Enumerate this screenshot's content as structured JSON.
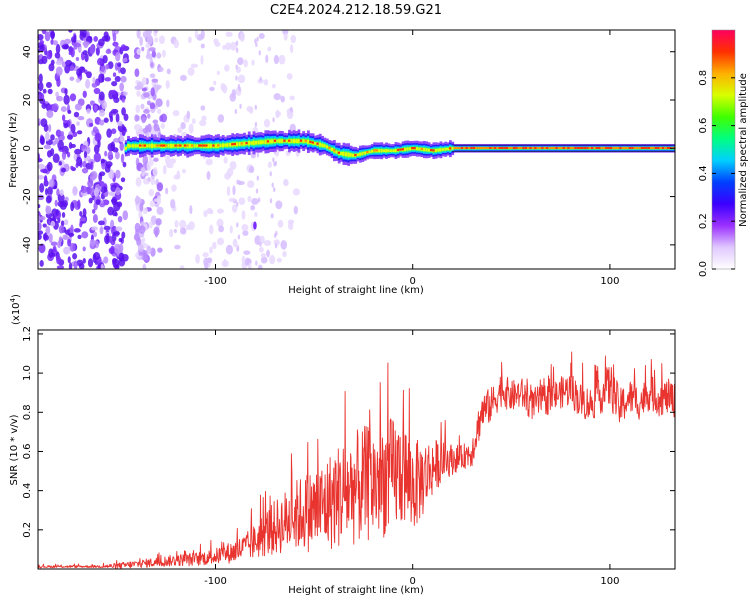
{
  "title": "C2E4.2024.212.18.59.G21",
  "colors": {
    "trace": "#e8332e",
    "frame": "#000000"
  },
  "chart_data": [
    {
      "type": "heatmap",
      "title": "C2E4.2024.212.18.59.G21",
      "xlabel": "Height of straight line (km)",
      "ylabel": "Frequency (Hz)",
      "xlim": [
        -190,
        133
      ],
      "ylim": [
        -50,
        49
      ],
      "xticks": [
        -100,
        0,
        100
      ],
      "xtick_labels": [
        "-100",
        "0",
        "100"
      ],
      "yticks": [
        -40,
        -20,
        0,
        20,
        40
      ],
      "ytick_labels": [
        "-40",
        "-20",
        "0",
        "20",
        "40"
      ],
      "ridge_center_hz": [
        {
          "x": -145,
          "y": 1
        },
        {
          "x": -120,
          "y": 1
        },
        {
          "x": -100,
          "y": 1
        },
        {
          "x": -85,
          "y": 2
        },
        {
          "x": -70,
          "y": 3
        },
        {
          "x": -55,
          "y": 3
        },
        {
          "x": -45,
          "y": 1
        },
        {
          "x": -38,
          "y": -2
        },
        {
          "x": -30,
          "y": -3
        },
        {
          "x": -20,
          "y": -1
        },
        {
          "x": -10,
          "y": -1
        },
        {
          "x": 0,
          "y": 0
        },
        {
          "x": 10,
          "y": -1
        },
        {
          "x": 20,
          "y": 0
        },
        {
          "x": 60,
          "y": 0
        },
        {
          "x": 100,
          "y": 0
        },
        {
          "x": 133,
          "y": 0
        }
      ],
      "colorbar": {
        "label": "Normalized spectral amplitude",
        "range": [
          0.0,
          1.0
        ],
        "ticks": [
          0.0,
          0.2,
          0.4,
          0.6,
          0.8
        ],
        "tick_labels": [
          "0.0",
          "0.2",
          "0.4",
          "0.6",
          "0.8"
        ],
        "colors": [
          "#ffffff",
          "#e0c8ff",
          "#9b30ff",
          "#3a00ff",
          "#0040ff",
          "#00d0ff",
          "#00ff80",
          "#40ff00",
          "#d8ff00",
          "#ffb000",
          "#ff3000",
          "#ff0060"
        ]
      }
    },
    {
      "type": "line",
      "series_name": "SNR",
      "xlabel": "Height of straight line (km)",
      "ylabel": "SNR (10 * v/v)",
      "scale_label": "(x10",
      "scale_exp": "4",
      "scale_close": ")",
      "xlim": [
        -190,
        133
      ],
      "ylim": [
        0,
        12200
      ],
      "xticks": [
        -100,
        0,
        100
      ],
      "xtick_labels": [
        "-100",
        "0",
        "100"
      ],
      "yticks": [
        2000,
        4000,
        6000,
        8000,
        10000,
        12000
      ],
      "ytick_labels": [
        "0.2",
        "0.4",
        "0.6",
        "0.8",
        "1.0",
        "1.2"
      ],
      "x": [
        -190,
        -160,
        -150,
        -140,
        -130,
        -120,
        -110,
        -100,
        -90,
        -85,
        -80,
        -75,
        -70,
        -65,
        -60,
        -55,
        -50,
        -45,
        -40,
        -35,
        -30,
        -25,
        -20,
        -15,
        -10,
        -5,
        0,
        5,
        10,
        15,
        20,
        25,
        30,
        35,
        40,
        45,
        50,
        55,
        60,
        65,
        70,
        75,
        80,
        85,
        90,
        95,
        100,
        105,
        110,
        115,
        120,
        125,
        130,
        133
      ],
      "values": [
        120,
        130,
        150,
        250,
        350,
        450,
        500,
        650,
        900,
        1100,
        1400,
        1800,
        2100,
        2400,
        2700,
        2900,
        3000,
        3200,
        3600,
        3900,
        4100,
        4300,
        4400,
        4600,
        4800,
        5000,
        4200,
        4600,
        5200,
        5500,
        5600,
        5700,
        6000,
        8000,
        8400,
        9200,
        8800,
        9000,
        8400,
        8600,
        8700,
        9000,
        9200,
        8600,
        8400,
        8800,
        9400,
        8200,
        8800,
        8500,
        9000,
        8700,
        8800,
        8600
      ],
      "spread": [
        60,
        60,
        150,
        200,
        250,
        300,
        350,
        400,
        600,
        700,
        900,
        1200,
        1400,
        1600,
        1800,
        2000,
        2200,
        2400,
        2600,
        2800,
        2900,
        3000,
        3000,
        3000,
        3000,
        2800,
        2400,
        2000,
        1500,
        1000,
        800,
        600,
        800,
        1000,
        900,
        900,
        800,
        800,
        800,
        800,
        800,
        800,
        900,
        900,
        900,
        900,
        1200,
        1000,
        900,
        900,
        900,
        900,
        900,
        900
      ]
    }
  ]
}
